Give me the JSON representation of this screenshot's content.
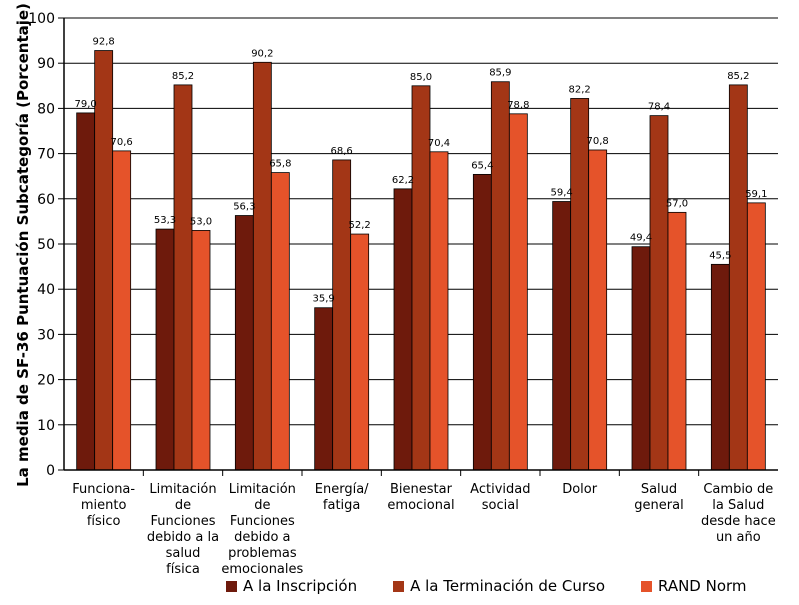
{
  "chart_data": {
    "type": "bar",
    "title": "",
    "xlabel": "",
    "ylabel": "La media de SF-36 Puntuación Subcategoría (Porcentaje)",
    "ylim": [
      0,
      100
    ],
    "yticks": [
      0,
      10,
      20,
      30,
      40,
      50,
      60,
      70,
      80,
      90,
      100
    ],
    "grid": true,
    "legend_position": "bottom",
    "categories": [
      [
        "Funciona-",
        "miento",
        "físico"
      ],
      [
        "Limitación",
        "de",
        "Funciones",
        "debido a la",
        "salud",
        "física"
      ],
      [
        "Limitación",
        "de",
        "Funciones",
        "debido a",
        "problemas",
        "emocionales"
      ],
      [
        "Energía/",
        "fatiga"
      ],
      [
        "Bienestar",
        "emocional"
      ],
      [
        "Actividad",
        "social"
      ],
      [
        "Dolor"
      ],
      [
        "Salud",
        "general"
      ],
      [
        "Cambio de",
        "la Salud",
        "desde hace",
        "un año"
      ]
    ],
    "series": [
      {
        "name": "A la Inscripción",
        "color": "#6e1a0c",
        "values": [
          79.0,
          53.3,
          56.3,
          35.9,
          62.2,
          65.4,
          59.4,
          49.4,
          45.5
        ],
        "labels": [
          "79,0",
          "53,3",
          "56,3",
          "35,9",
          "62,2",
          "65,4",
          "59,4",
          "49,4",
          "45,5"
        ]
      },
      {
        "name": "A la Terminación de Curso",
        "color": "#a33616",
        "values": [
          92.8,
          85.2,
          90.2,
          68.6,
          85.0,
          85.9,
          82.2,
          78.4,
          85.2
        ],
        "labels": [
          "92,8",
          "85,2",
          "90,2",
          "68,6",
          "85,0",
          "85,9",
          "82,2",
          "78,4",
          "85,2"
        ]
      },
      {
        "name": "RAND Norm",
        "color": "#e5532a",
        "values": [
          70.6,
          53.0,
          65.8,
          52.2,
          70.4,
          78.8,
          70.8,
          57.0,
          59.1
        ],
        "labels": [
          "70,6",
          "53,0",
          "65,8",
          "52,2",
          "70,4",
          "78,8",
          "70,8",
          "57,0",
          "59,1"
        ]
      }
    ]
  }
}
